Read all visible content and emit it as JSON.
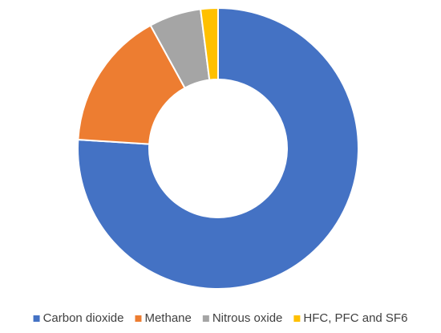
{
  "chart_data": {
    "type": "donut",
    "categories": [
      "Carbon dioxide",
      "Methane",
      "Nitrous oxide",
      "HFC, PFC and SF6"
    ],
    "values": [
      76,
      16,
      6,
      2
    ],
    "colors": [
      "#4472c4",
      "#ed7d31",
      "#a5a5a5",
      "#ffc000"
    ],
    "legend": "bottom"
  }
}
